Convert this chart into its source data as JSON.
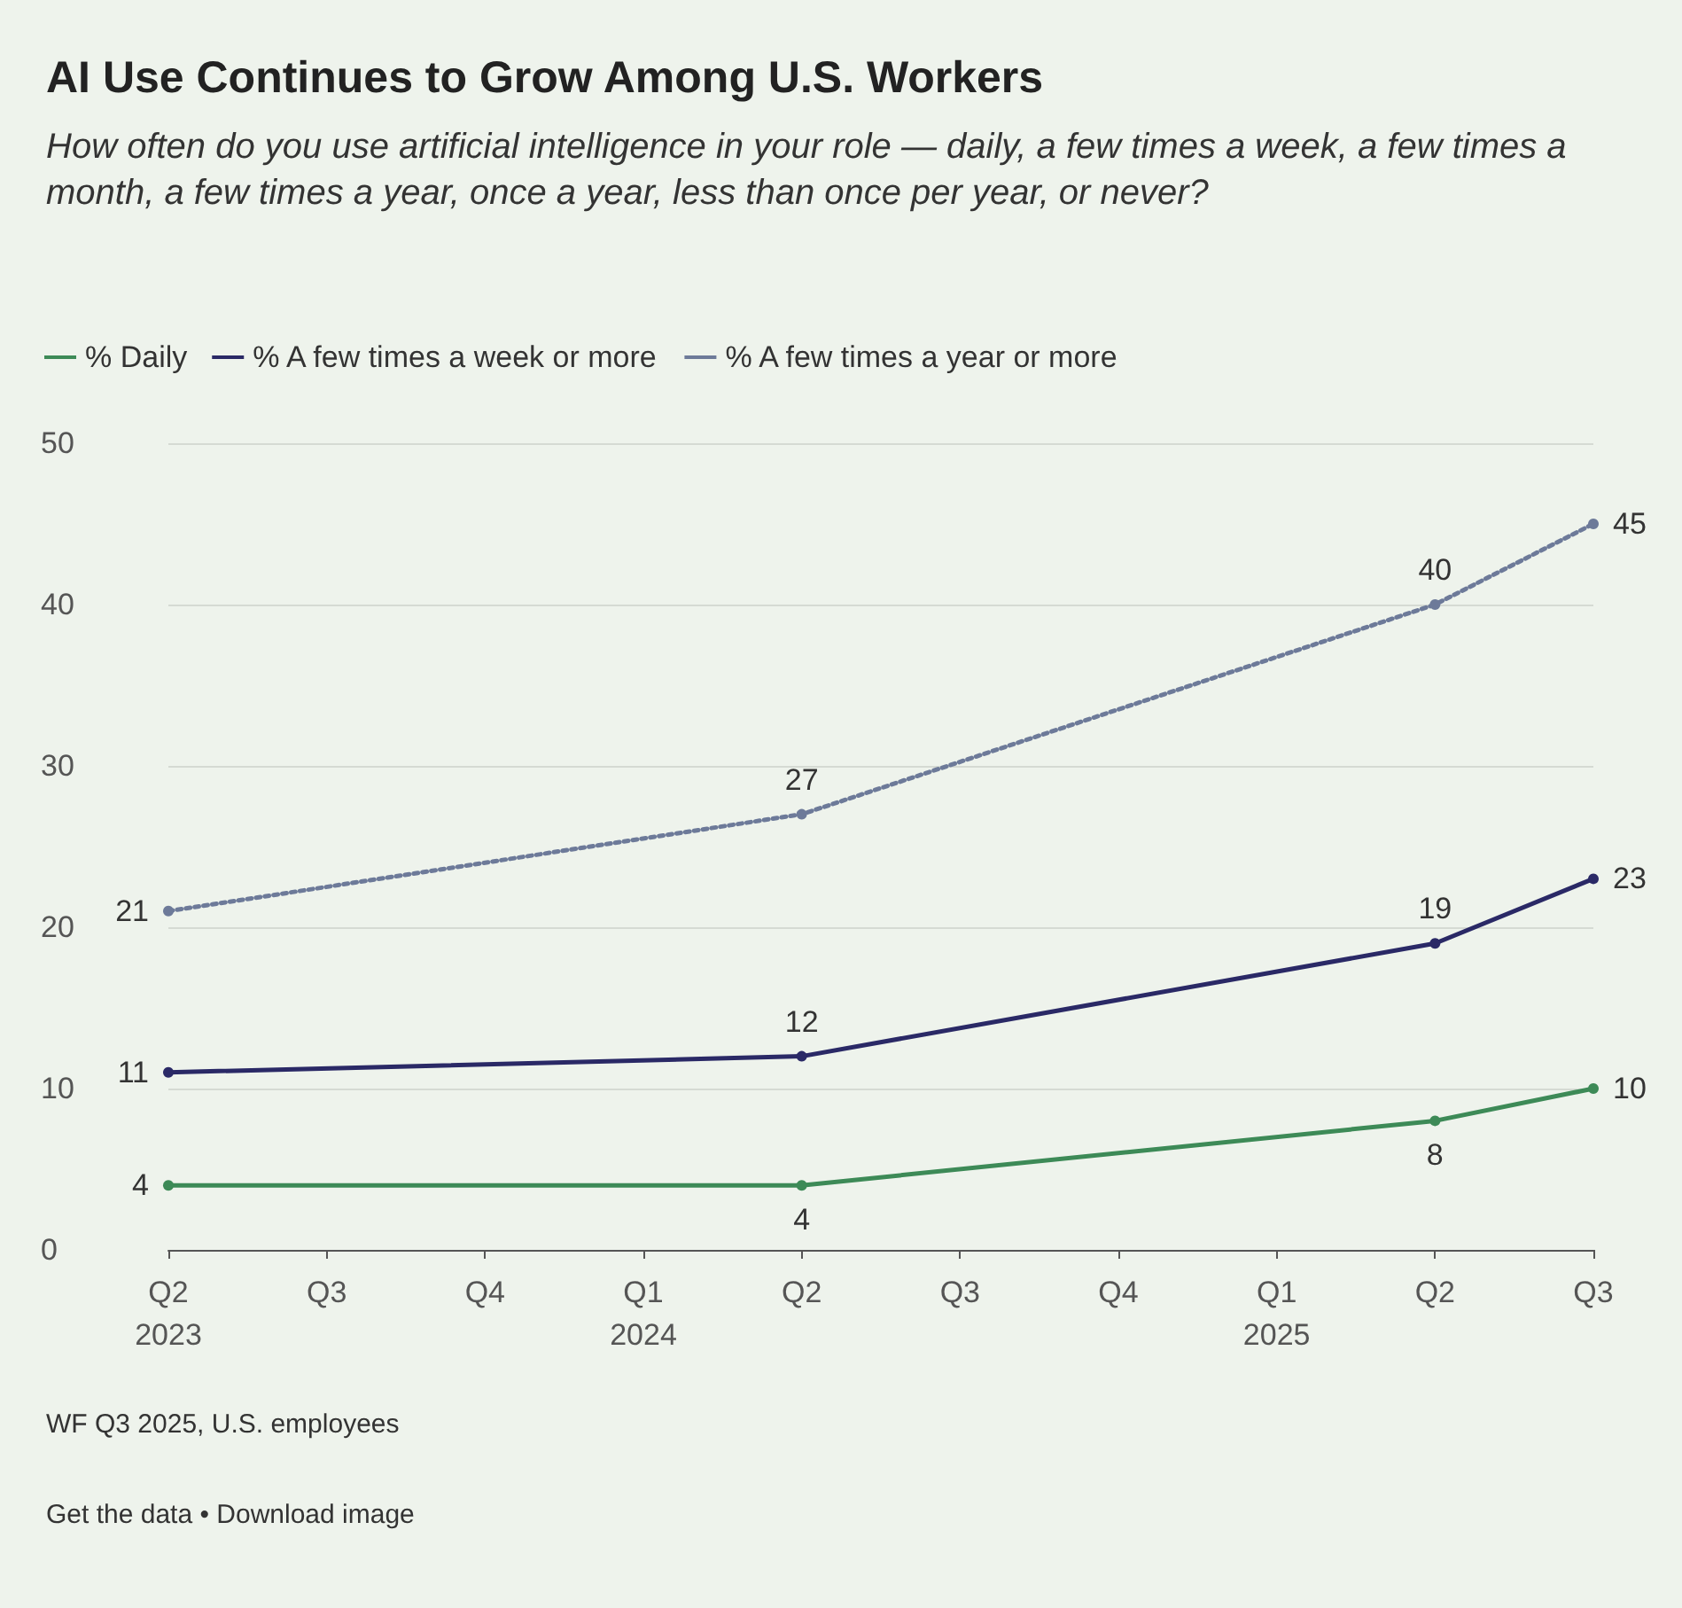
{
  "chart_data": {
    "type": "line",
    "title": "AI Use Continues to Grow Among U.S. Workers",
    "subtitle": "How often do you use artificial intelligence in your role — daily, a few times a week, a few times a month, a few times a year, once a year, less than once per year, or never?",
    "categories": [
      "Q2 2023",
      "Q3",
      "Q4",
      "Q1 2024",
      "Q2",
      "Q3",
      "Q4",
      "Q1 2025",
      "Q2",
      "Q3"
    ],
    "series": [
      {
        "name": "% Daily",
        "color": "#3d8a57",
        "values": [
          4,
          null,
          null,
          null,
          4,
          null,
          null,
          null,
          8,
          10
        ]
      },
      {
        "name": "% A few times a week or more",
        "color": "#2a2966",
        "values": [
          11,
          null,
          null,
          null,
          12,
          null,
          null,
          null,
          19,
          23
        ]
      },
      {
        "name": "% A few times a year or more",
        "color": "#6d7a99",
        "line_style": "dotted",
        "values": [
          21,
          null,
          null,
          null,
          27,
          null,
          null,
          null,
          40,
          45
        ]
      }
    ],
    "ylim": [
      0,
      50
    ],
    "yticks": [
      0,
      10,
      20,
      30,
      40,
      50
    ],
    "grid": "y",
    "legend": "top left",
    "marker": "circle",
    "data_labels": true,
    "annotations": [
      "WF Q3 2025, U.S. employees",
      "Get the data • Download image"
    ]
  }
}
